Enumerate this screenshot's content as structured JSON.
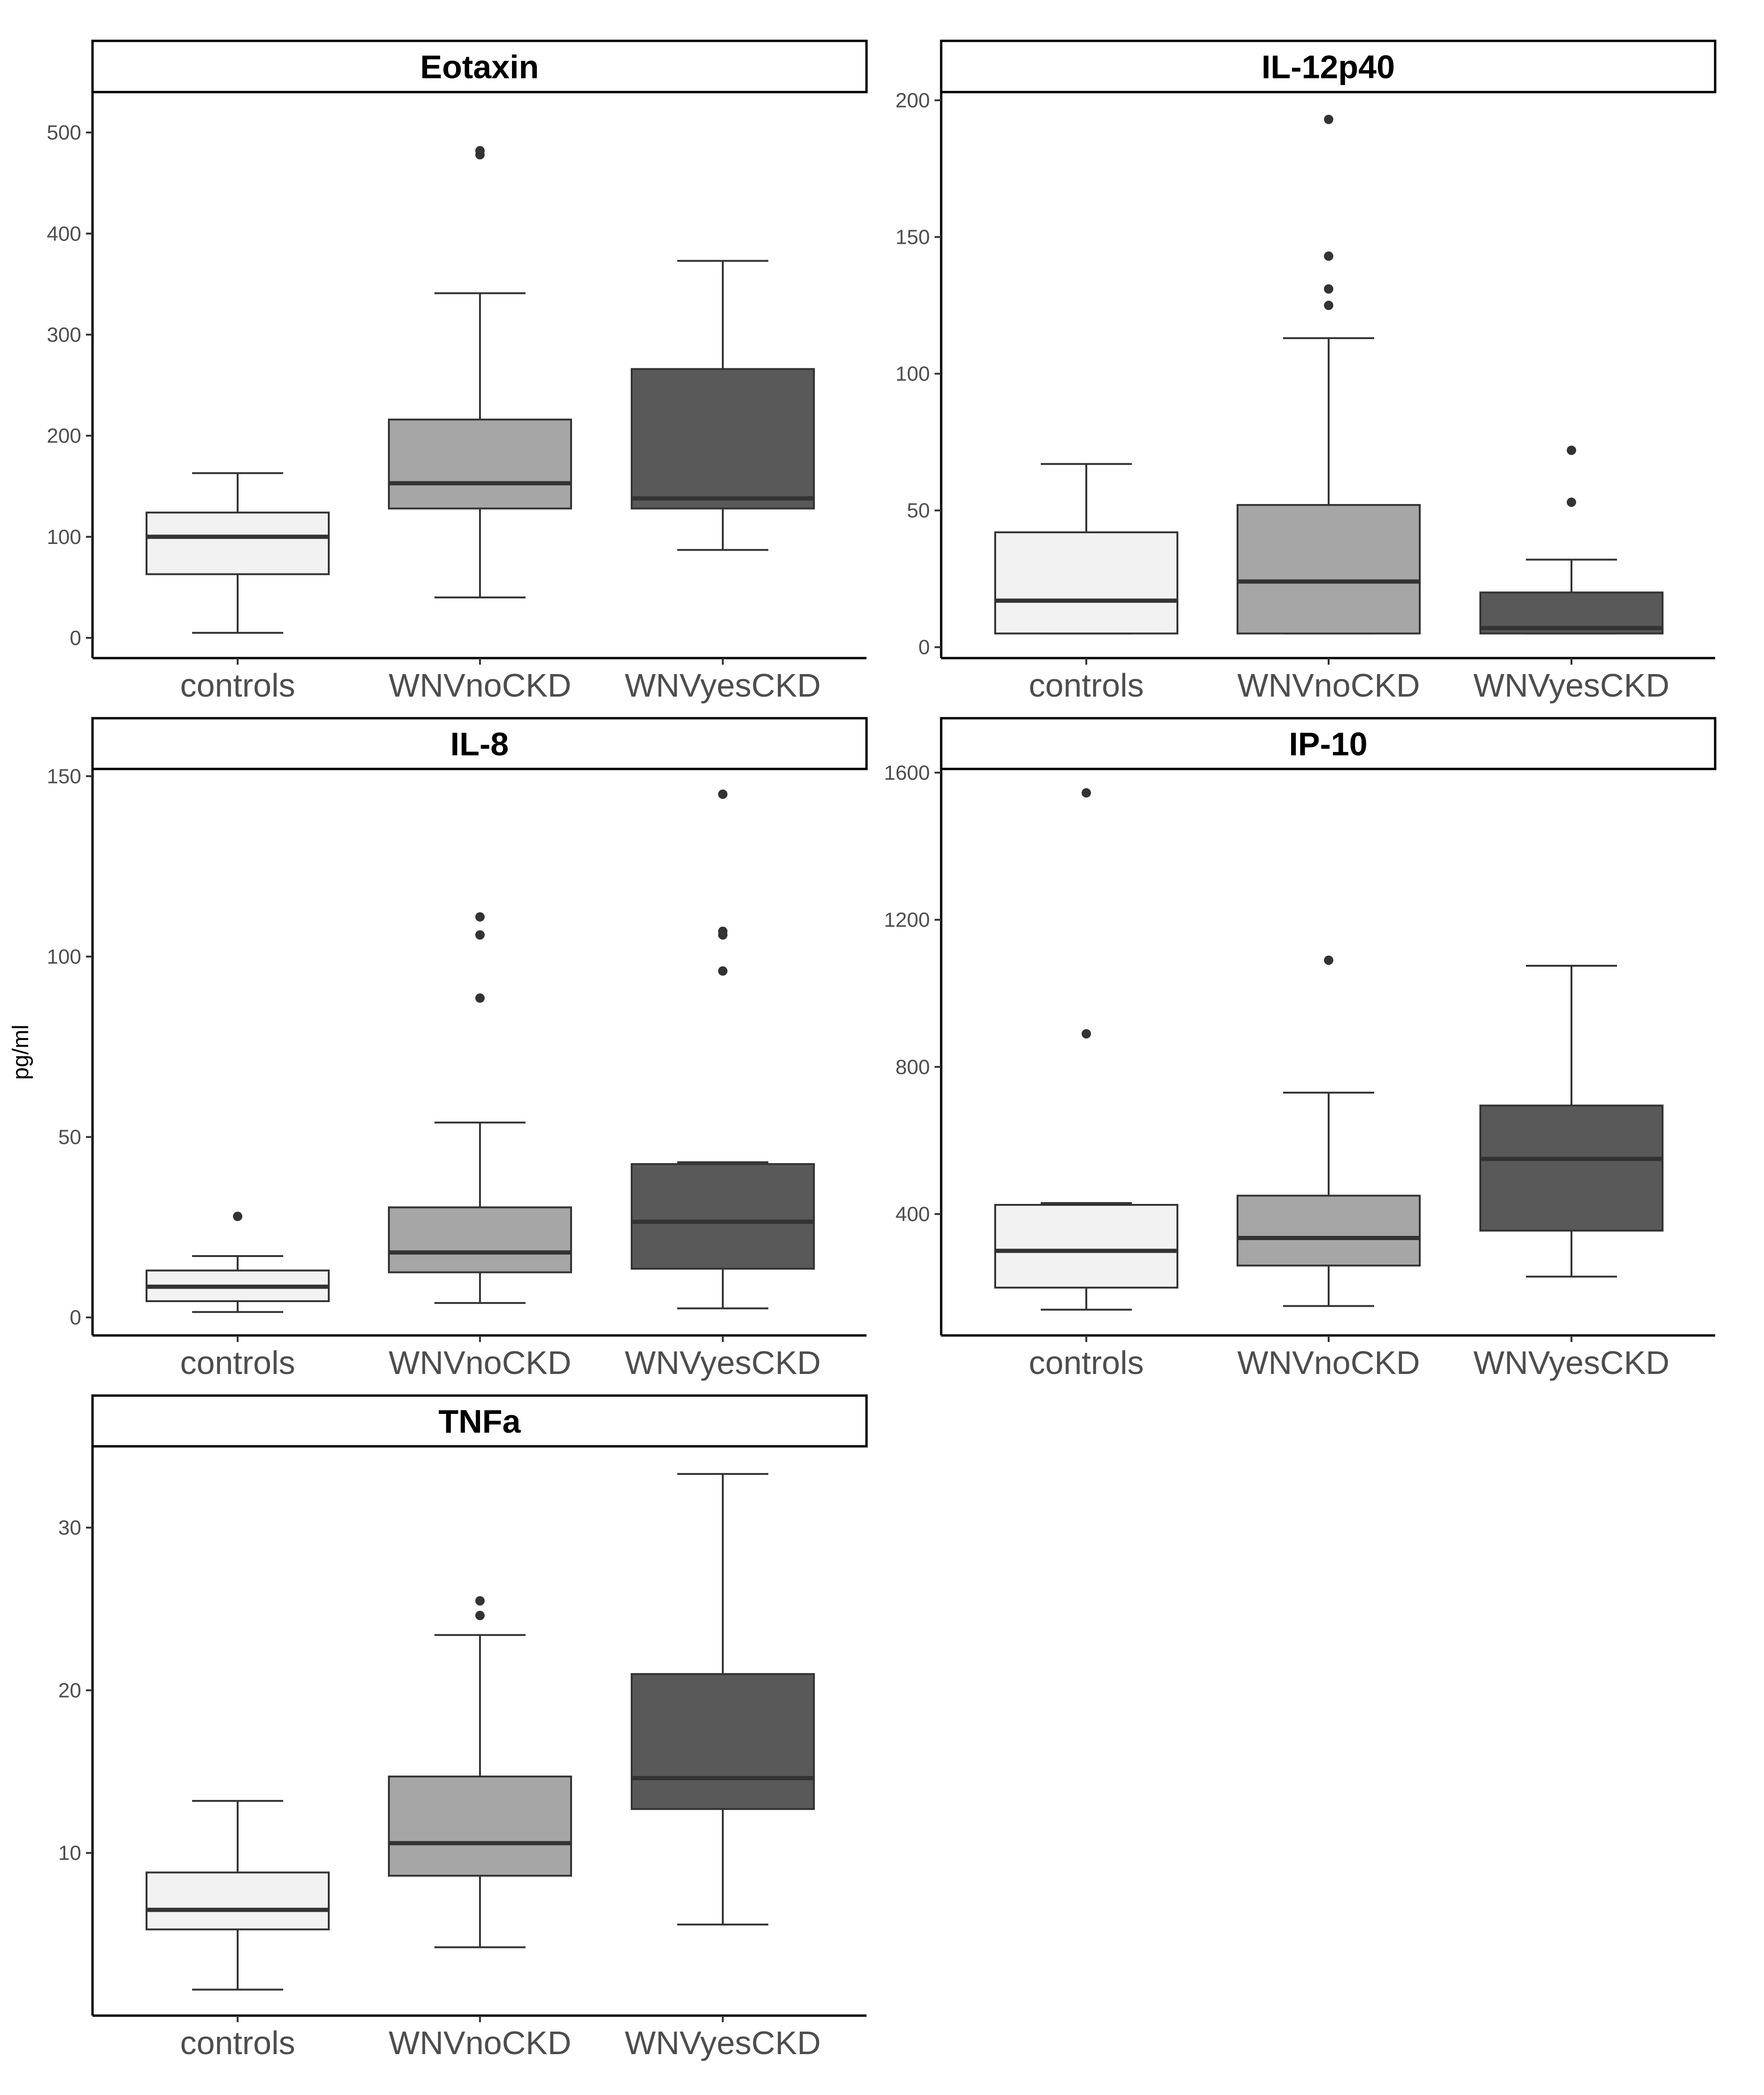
{
  "figure": {
    "ylabel": "pg/ml",
    "colors": {
      "controls": "#f2f2f2",
      "WNVnoCKD": "#a6a6a6",
      "WNVyesCKD": "#595959",
      "stroke": "#333333",
      "axis": "#000000"
    }
  },
  "chart_data": [
    {
      "type": "boxplot",
      "title": "Eotaxin",
      "categories": [
        "controls",
        "WNVnoCKD",
        "WNVyesCKD"
      ],
      "ylim": [
        -20,
        540
      ],
      "yticks": [
        0,
        100,
        200,
        300,
        400,
        500
      ],
      "boxes": [
        {
          "group": "controls",
          "whisker_low": 5,
          "q1": 63,
          "median": 100,
          "q3": 124,
          "whisker_high": 163,
          "outliers": []
        },
        {
          "group": "WNVnoCKD",
          "whisker_low": 40,
          "q1": 128,
          "median": 153,
          "q3": 216,
          "whisker_high": 341,
          "outliers": [
            478,
            482
          ]
        },
        {
          "group": "WNVyesCKD",
          "whisker_low": 87,
          "q1": 128,
          "median": 138,
          "q3": 266,
          "whisker_high": 373,
          "outliers": []
        }
      ]
    },
    {
      "type": "boxplot",
      "title": "IL-12p40",
      "categories": [
        "controls",
        "WNVnoCKD",
        "WNVyesCKD"
      ],
      "ylim": [
        -4,
        203
      ],
      "yticks": [
        0,
        50,
        100,
        150,
        200
      ],
      "boxes": [
        {
          "group": "controls",
          "whisker_low": 5,
          "q1": 5,
          "median": 17,
          "q3": 42,
          "whisker_high": 67,
          "outliers": []
        },
        {
          "group": "WNVnoCKD",
          "whisker_low": 5,
          "q1": 5,
          "median": 24,
          "q3": 52,
          "whisker_high": 113,
          "outliers": [
            125,
            131,
            143,
            193
          ]
        },
        {
          "group": "WNVyesCKD",
          "whisker_low": 5,
          "q1": 5,
          "median": 7,
          "q3": 20,
          "whisker_high": 32,
          "outliers": [
            53,
            72
          ]
        }
      ]
    },
    {
      "type": "boxplot",
      "title": "IL-8",
      "categories": [
        "controls",
        "WNVnoCKD",
        "WNVyesCKD"
      ],
      "ylim": [
        -5,
        152
      ],
      "yticks": [
        0,
        50,
        100,
        150
      ],
      "boxes": [
        {
          "group": "controls",
          "whisker_low": 1.5,
          "q1": 4.5,
          "median": 8.5,
          "q3": 13,
          "whisker_high": 17,
          "outliers": [
            28
          ]
        },
        {
          "group": "WNVnoCKD",
          "whisker_low": 4,
          "q1": 12.5,
          "median": 18,
          "q3": 30.5,
          "whisker_high": 54,
          "outliers": [
            88.5,
            106,
            111
          ]
        },
        {
          "group": "WNVyesCKD",
          "whisker_low": 2.5,
          "q1": 13.5,
          "median": 26.5,
          "q3": 42.5,
          "whisker_high": 43,
          "outliers": [
            96,
            106,
            107,
            145
          ]
        }
      ]
    },
    {
      "type": "boxplot",
      "title": "IP-10",
      "categories": [
        "controls",
        "WNVnoCKD",
        "WNVyesCKD"
      ],
      "ylim": [
        70,
        1610
      ],
      "yticks": [
        400,
        800,
        1200,
        1600
      ],
      "boxes": [
        {
          "group": "controls",
          "whisker_low": 140,
          "q1": 200,
          "median": 300,
          "q3": 425,
          "whisker_high": 430,
          "outliers": [
            890,
            1545
          ]
        },
        {
          "group": "WNVnoCKD",
          "whisker_low": 150,
          "q1": 260,
          "median": 335,
          "q3": 450,
          "whisker_high": 730,
          "outliers": [
            1090
          ]
        },
        {
          "group": "WNVyesCKD",
          "whisker_low": 230,
          "q1": 355,
          "median": 550,
          "q3": 695,
          "whisker_high": 1075,
          "outliers": []
        }
      ]
    },
    {
      "type": "boxplot",
      "title": "TNFa",
      "categories": [
        "controls",
        "WNVnoCKD",
        "WNVyesCKD"
      ],
      "ylim": [
        0,
        35
      ],
      "yticks": [
        10,
        20,
        30
      ],
      "boxes": [
        {
          "group": "controls",
          "whisker_low": 1.6,
          "q1": 5.3,
          "median": 6.5,
          "q3": 8.8,
          "whisker_high": 13.2,
          "outliers": []
        },
        {
          "group": "WNVnoCKD",
          "whisker_low": 4.2,
          "q1": 8.6,
          "median": 10.6,
          "q3": 14.7,
          "whisker_high": 23.4,
          "outliers": [
            24.6,
            25.5
          ]
        },
        {
          "group": "WNVyesCKD",
          "whisker_low": 5.6,
          "q1": 12.7,
          "median": 14.6,
          "q3": 21,
          "whisker_high": 33.3,
          "outliers": []
        }
      ]
    }
  ]
}
